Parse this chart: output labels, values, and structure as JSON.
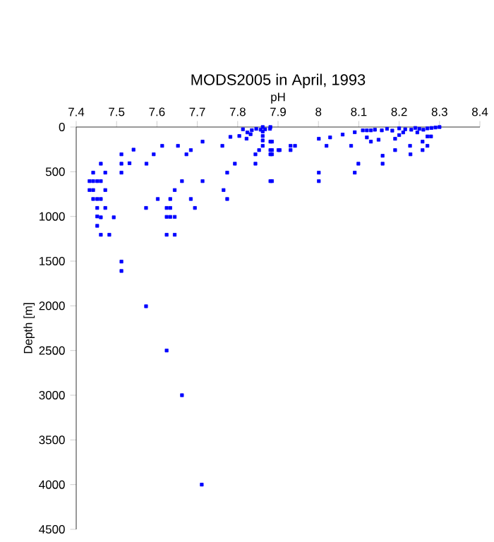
{
  "chart_data": {
    "type": "scatter",
    "title": "MODS2005 in April, 1993",
    "xlabel": "pH",
    "ylabel": "Depth [m]",
    "xlim": [
      7.4,
      8.4
    ],
    "ylim": [
      4500,
      0
    ],
    "xticks": [
      7.4,
      7.5,
      7.6,
      7.7,
      7.8,
      7.9,
      8,
      8.1,
      8.2,
      8.3,
      8.4
    ],
    "yticks": [
      0,
      500,
      1000,
      1500,
      2000,
      2500,
      3000,
      3500,
      4000,
      4500
    ],
    "marker": "square",
    "series": [
      {
        "color": "#0000ff",
        "x": [
          7.512,
          7.542,
          7.613,
          7.652,
          7.592,
          7.684,
          7.673,
          7.713,
          7.762,
          7.782,
          7.804,
          7.461,
          7.512,
          7.532,
          7.574,
          7.442,
          7.472,
          7.512,
          7.793,
          7.844,
          7.844,
          7.774,
          7.853,
          7.885,
          7.885,
          7.885,
          7.904,
          7.433,
          7.442,
          7.452,
          7.461,
          7.662,
          7.713,
          7.885,
          7.433,
          7.442,
          7.472,
          7.644,
          7.765,
          7.442,
          7.452,
          7.461,
          7.602,
          7.633,
          7.684,
          7.774,
          7.452,
          7.472,
          7.573,
          7.624,
          7.633,
          7.694,
          7.452,
          7.461,
          7.493,
          7.624,
          7.633,
          7.644,
          7.452,
          7.461,
          7.482,
          7.624,
          7.644,
          7.512,
          7.512,
          7.573,
          7.624,
          7.662,
          7.711,
          7.813,
          7.824,
          7.835,
          7.846,
          7.857,
          7.868,
          7.88,
          7.822,
          7.832,
          7.862,
          7.862,
          7.862,
          7.862,
          7.862,
          7.881,
          7.881,
          7.881,
          7.881,
          7.901,
          7.931,
          7.942,
          7.931,
          8.001,
          8.029,
          8.02,
          8.06,
          8.09,
          8.081,
          8.12,
          8.13,
          8.11,
          8.12,
          8.13,
          8.14,
          8.157,
          8.149,
          8.159,
          8.159,
          8.099,
          8.09,
          8.001,
          8.001,
          7.881,
          8.19,
          8.19,
          8.227,
          8.228,
          8.258,
          8.258,
          8.27,
          8.27,
          8.279,
          8.17,
          8.2,
          8.215,
          8.23,
          8.24,
          8.25,
          8.26,
          8.27,
          8.28,
          8.29,
          8.3,
          8.183,
          8.21,
          8.2,
          8.245
        ],
        "values": [
          305,
          253,
          210,
          210,
          305,
          258,
          305,
          163,
          210,
          110,
          100,
          410,
          410,
          405,
          410,
          510,
          510,
          510,
          410,
          305,
          410,
          510,
          258,
          258,
          305,
          163,
          258,
          605,
          605,
          605,
          605,
          605,
          605,
          605,
          705,
          705,
          705,
          705,
          705,
          805,
          805,
          805,
          805,
          805,
          805,
          805,
          905,
          905,
          905,
          905,
          905,
          905,
          1000,
          1010,
          1010,
          1005,
          1005,
          1005,
          1105,
          1205,
          1205,
          1205,
          1205,
          1505,
          1610,
          2005,
          2500,
          3000,
          4000,
          25,
          60,
          35,
          20,
          30,
          25,
          20,
          130,
          80,
          0,
          50,
          100,
          150,
          210,
          0,
          163,
          258,
          305,
          258,
          210,
          210,
          258,
          131,
          116,
          210,
          84,
          58,
          210,
          116,
          163,
          37,
          37,
          37,
          30,
          37,
          142,
          321,
          410,
          410,
          510,
          510,
          605,
          605,
          258,
          131,
          210,
          305,
          258,
          163,
          210,
          105,
          105,
          20,
          15,
          25,
          30,
          10,
          20,
          30,
          15,
          10,
          5,
          0,
          40,
          60,
          90,
          60
        ]
      }
    ]
  }
}
